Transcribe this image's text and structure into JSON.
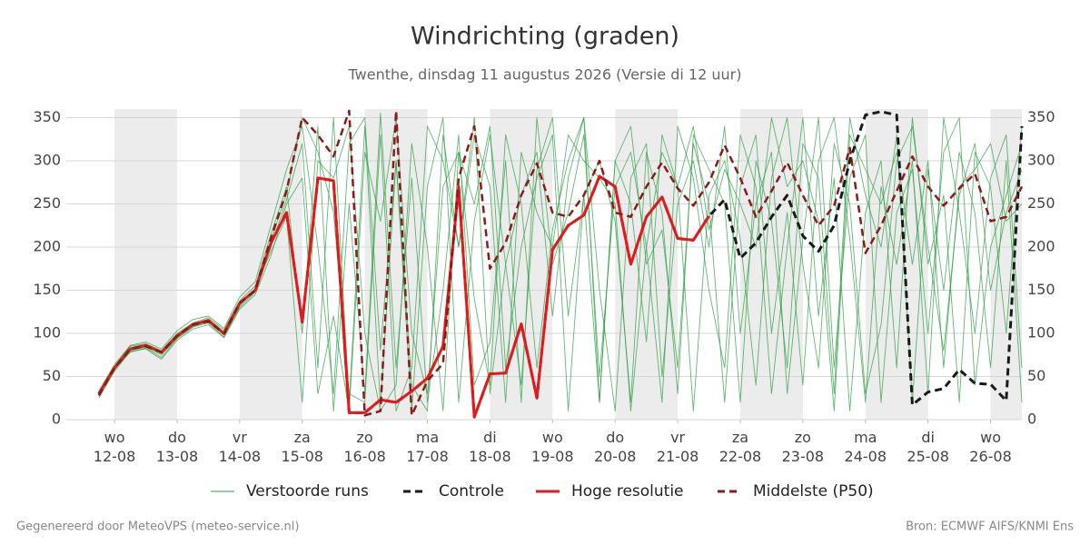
{
  "chart_data": {
    "type": "line",
    "title": "Windrichting (graden)",
    "subtitle": "Twenthe, dinsdag 11 augustus 2026 (Versie di 12 uur)",
    "footer_left": "Gegenereerd door MeteoVPS (meteo-service.nl)",
    "footer_right": "Bron: ECMWF AIFS/KNMI Ens",
    "x": [
      -0.25,
      0,
      0.25,
      0.5,
      0.75,
      1,
      1.25,
      1.5,
      1.75,
      2,
      2.25,
      2.5,
      2.75,
      3,
      3.25,
      3.5,
      3.75,
      4,
      4.25,
      4.5,
      4.75,
      5,
      5.25,
      5.5,
      5.75,
      6,
      6.25,
      6.5,
      6.75,
      7,
      7.25,
      7.5,
      7.75,
      8,
      8.25,
      8.5,
      8.75,
      9,
      9.25,
      9.5,
      9.75,
      10,
      10.25,
      10.5,
      10.75,
      11,
      11.25,
      11.5,
      11.75,
      12,
      12.25,
      12.5,
      12.75,
      13,
      13.25,
      13.5,
      13.75,
      14,
      14.25,
      14.5
    ],
    "xlim": [
      -0.77,
      14.5
    ],
    "xticks": [
      {
        "value": 0,
        "label": "wo\n12-08"
      },
      {
        "value": 1,
        "label": "do\n13-08"
      },
      {
        "value": 2,
        "label": "vr\n14-08"
      },
      {
        "value": 3,
        "label": "za\n15-08"
      },
      {
        "value": 4,
        "label": "zo\n16-08"
      },
      {
        "value": 5,
        "label": "ma\n17-08"
      },
      {
        "value": 6,
        "label": "di\n18-08"
      },
      {
        "value": 7,
        "label": "wo\n19-08"
      },
      {
        "value": 8,
        "label": "do\n20-08"
      },
      {
        "value": 9,
        "label": "vr\n21-08"
      },
      {
        "value": 10,
        "label": "za\n22-08"
      },
      {
        "value": 11,
        "label": "zo\n23-08"
      },
      {
        "value": 12,
        "label": "ma\n24-08"
      },
      {
        "value": 13,
        "label": "di\n25-08"
      },
      {
        "value": 14,
        "label": "wo\n26-08"
      }
    ],
    "ylim": [
      0,
      360
    ],
    "yticks": [
      0,
      50,
      100,
      150,
      200,
      250,
      300,
      350
    ],
    "grid": true,
    "shade_alternate_days": true,
    "ensemble": {
      "name": "Verstoorde runs",
      "color": "#2e9e44",
      "runs": [
        [
          27,
          58,
          80,
          84,
          75,
          95,
          108,
          112,
          96,
          130,
          148,
          200,
          255,
          320,
          60,
          350,
          20,
          340,
          15,
          300,
          40,
          10,
          330,
          200,
          350,
          30,
          180,
          260,
          310,
          120,
          280,
          350,
          20,
          300,
          250,
          90,
          330,
          270,
          10,
          260,
          300,
          210,
          40,
          280,
          350,
          180,
          60,
          320,
          250,
          30,
          110,
          300,
          340,
          200,
          80,
          260,
          320,
          150,
          240,
          290
        ],
        [
          31,
          62,
          85,
          88,
          80,
          100,
          112,
          118,
          104,
          138,
          155,
          215,
          270,
          100,
          340,
          10,
          250,
          30,
          355,
          60,
          280,
          20,
          150,
          330,
          40,
          90,
          300,
          20,
          350,
          180,
          240,
          330,
          50,
          270,
          310,
          200,
          20,
          340,
          280,
          150,
          60,
          330,
          270,
          30,
          200,
          350,
          120,
          280,
          10,
          240,
          300,
          60,
          350,
          180,
          260,
          20,
          310,
          270,
          100,
          340
        ],
        [
          29,
          59,
          78,
          83,
          72,
          94,
          107,
          113,
          98,
          132,
          152,
          195,
          235,
          20,
          300,
          280,
          340,
          100,
          10,
          40,
          320,
          200,
          10,
          310,
          250,
          340,
          60,
          200,
          280,
          330,
          10,
          260,
          300,
          230,
          20,
          310,
          240,
          30,
          330,
          290,
          250,
          20,
          300,
          230,
          60,
          320,
          280,
          30,
          350,
          260,
          200,
          330,
          20,
          290,
          150,
          310,
          240,
          60,
          300,
          20
        ],
        [
          33,
          64,
          86,
          90,
          82,
          103,
          116,
          120,
          106,
          142,
          160,
          225,
          290,
          340,
          200,
          30,
          320,
          350,
          80,
          300,
          10,
          270,
          350,
          20,
          230,
          330,
          180,
          40,
          290,
          350,
          120,
          260,
          20,
          300,
          340,
          180,
          220,
          60,
          320,
          250,
          20,
          270,
          330,
          100,
          240,
          40,
          300,
          350,
          210,
          20,
          270,
          180,
          300,
          30,
          350,
          240,
          100,
          280,
          330,
          60
        ],
        [
          25,
          56,
          79,
          82,
          70,
          92,
          105,
          110,
          95,
          128,
          145,
          190,
          250,
          280,
          30,
          120,
          10,
          310,
          230,
          350,
          100,
          30,
          270,
          310,
          140,
          40,
          330,
          250,
          60,
          220,
          300,
          350,
          150,
          10,
          280,
          320,
          50,
          250,
          300,
          200,
          340,
          100,
          250,
          310,
          30,
          210,
          350,
          60,
          280,
          330,
          20,
          240,
          290,
          100,
          310,
          350,
          40,
          200,
          260,
          320
        ],
        [
          30,
          61,
          83,
          87,
          79,
          98,
          111,
          116,
          101,
          136,
          151,
          208,
          262,
          350,
          310,
          240,
          30,
          20,
          330,
          10,
          60,
          340,
          300,
          200,
          330,
          270,
          20,
          310,
          240,
          200,
          330,
          300,
          280,
          250,
          10,
          200,
          310,
          270,
          340,
          220,
          290,
          250,
          200,
          350,
          270,
          300,
          230,
          10,
          330,
          290,
          250,
          310,
          180,
          300,
          60,
          270,
          290,
          320,
          230,
          250
        ]
      ]
    },
    "series": [
      {
        "name": "Controle",
        "color": "#1a1a1a",
        "dashed": true,
        "values": [
          30,
          60,
          82,
          86,
          78,
          97,
          110,
          115,
          100,
          135,
          150,
          205,
          240,
          113,
          280,
          277,
          8,
          8,
          23,
          20,
          33,
          48,
          85,
          270,
          3,
          53,
          54,
          111,
          25,
          197,
          225,
          237,
          282,
          270,
          180,
          235,
          258,
          210,
          208,
          236,
          255,
          187,
          205,
          235,
          260,
          213,
          195,
          225,
          300,
          353,
          357,
          353,
          17,
          32,
          36,
          58,
          42,
          41,
          22,
          340
        ]
      },
      {
        "name": "Hoge resolutie",
        "color": "#e3191c",
        "dashed": false,
        "values": [
          30,
          60,
          82,
          86,
          78,
          97,
          110,
          115,
          100,
          135,
          150,
          205,
          240,
          113,
          280,
          277,
          8,
          8,
          23,
          20,
          33,
          48,
          85,
          270,
          3,
          53,
          54,
          111,
          25,
          197,
          225,
          237,
          282,
          270,
          180,
          235,
          258,
          210,
          208,
          236,
          null,
          null,
          null,
          null,
          null,
          null,
          null,
          null,
          null,
          null,
          null,
          null,
          null,
          null,
          null,
          null,
          null,
          null,
          null,
          null
        ]
      },
      {
        "name": "Middelste (P50)",
        "color": "#8b1a1a",
        "dashed": true,
        "values": [
          28,
          60,
          82,
          85,
          78,
          97,
          110,
          114,
          100,
          135,
          150,
          210,
          265,
          350,
          330,
          305,
          358,
          5,
          10,
          358,
          5,
          45,
          65,
          280,
          340,
          175,
          205,
          260,
          297,
          240,
          235,
          260,
          300,
          240,
          235,
          270,
          298,
          268,
          248,
          275,
          318,
          280,
          235,
          265,
          298,
          260,
          225,
          248,
          315,
          193,
          225,
          265,
          305,
          270,
          248,
          268,
          285,
          230,
          235,
          270
        ]
      }
    ]
  }
}
